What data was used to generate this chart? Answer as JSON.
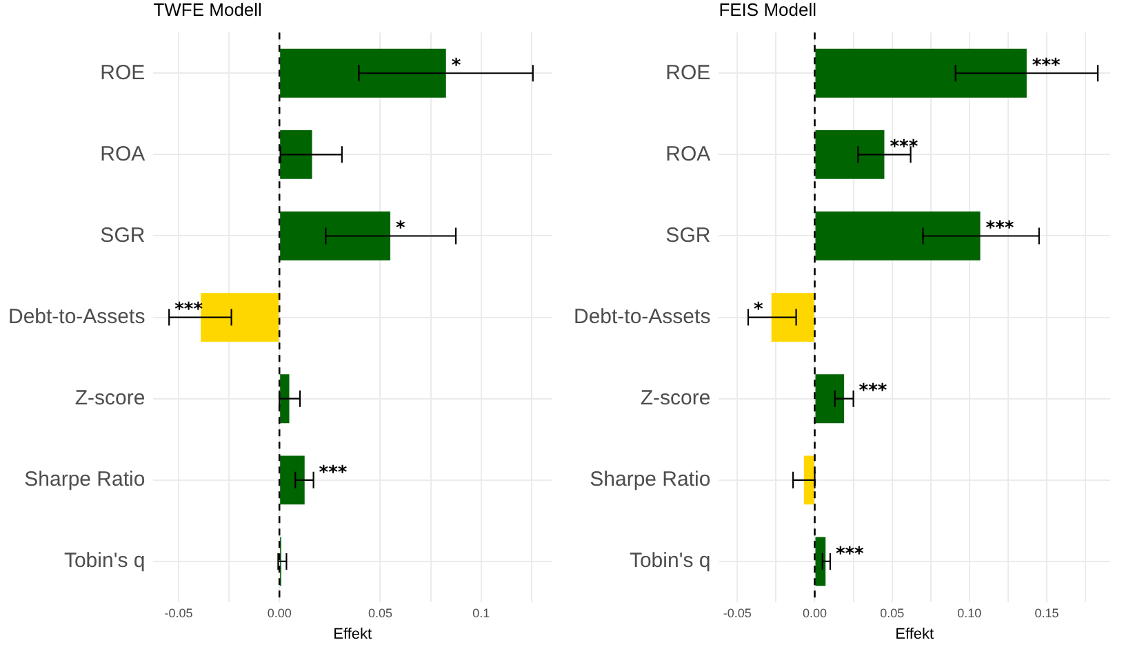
{
  "chart_data": [
    {
      "type": "bar",
      "orientation": "horizontal",
      "title": "TWFE Modell",
      "xlabel": "Effekt",
      "categories": [
        "ROE",
        "ROA",
        "SGR",
        "Debt-to-Assets",
        "Z-score",
        "Sharpe Ratio",
        "Tobin's q"
      ],
      "values": [
        0.0826,
        0.0162,
        0.055,
        -0.039,
        0.0049,
        0.0125,
        0.0009
      ],
      "colors": [
        "#006400",
        "#006400",
        "#006400",
        "#ffd700",
        "#006400",
        "#006400",
        "#006400"
      ],
      "errors": [
        [
          0.0394,
          0.1257
        ],
        [
          0.0005,
          0.031
        ],
        [
          0.023,
          0.0875
        ],
        [
          -0.0547,
          -0.0238
        ],
        [
          0.0,
          0.0102
        ],
        [
          0.0079,
          0.0169
        ],
        [
          -0.0006,
          0.0035
        ]
      ],
      "xlim": [
        -0.0625,
        0.135
      ],
      "xticks": [
        -0.05,
        {
          "value": -0.025,
          "label": null
        },
        "0.00",
        0.05,
        {
          "value": 0.075,
          "label": null
        },
        0.1,
        {
          "value": 0.125,
          "label": null
        }
      ],
      "grid": true,
      "ref_lines": [
        {
          "axis": "x",
          "value": 0,
          "line_style": "dashed"
        }
      ],
      "annotations": [
        {
          "text": "*",
          "x": 0.0826,
          "y": "ROE"
        },
        {
          "text": "*",
          "x": 0.055,
          "y": "SGR"
        },
        {
          "text": "***",
          "x": -0.0547,
          "y": "Debt-to-Assets"
        },
        {
          "text": "***",
          "x": 0.0169,
          "y": "Sharpe Ratio"
        }
      ]
    },
    {
      "type": "bar",
      "orientation": "horizontal",
      "title": "FEIS Modell",
      "xlabel": "Effekt",
      "categories": [
        "ROE",
        "ROA",
        "SGR",
        "Debt-to-Assets",
        "Z-score",
        "Sharpe Ratio",
        "Tobin's q"
      ],
      "values": [
        0.137,
        0.045,
        0.107,
        -0.028,
        0.019,
        -0.007,
        0.007
      ],
      "colors": [
        "#006400",
        "#006400",
        "#006400",
        "#ffd700",
        "#006400",
        "#ffd700",
        "#006400"
      ],
      "errors": [
        [
          0.091,
          0.183
        ],
        [
          0.028,
          0.062
        ],
        [
          0.07,
          0.145
        ],
        [
          -0.043,
          -0.012
        ],
        [
          0.013,
          0.025
        ],
        [
          -0.014,
          0.0
        ],
        [
          0.005,
          0.01
        ]
      ],
      "xlim": [
        -0.062,
        0.191
      ],
      "xticks": [
        -0.05,
        {
          "value": -0.025,
          "label": null
        },
        "0.00",
        {
          "value": 0.025,
          "label": null
        },
        0.05,
        {
          "value": 0.075,
          "label": null
        },
        "0.10",
        {
          "value": 0.125,
          "label": null
        },
        0.15,
        {
          "value": 0.175,
          "label": null
        }
      ],
      "grid": true,
      "ref_lines": [
        {
          "axis": "x",
          "value": 0,
          "line_style": "dashed"
        }
      ],
      "annotations": [
        {
          "text": "***",
          "x": 0.137,
          "y": "ROE"
        },
        {
          "text": "***",
          "x": 0.045,
          "y": "ROA"
        },
        {
          "text": "***",
          "x": 0.107,
          "y": "SGR"
        },
        {
          "text": "*",
          "x": -0.043,
          "y": "Debt-to-Assets"
        },
        {
          "text": "***",
          "x": 0.025,
          "y": "Z-score"
        },
        {
          "text": "***",
          "x": 0.01,
          "y": "Tobin's q"
        }
      ]
    }
  ]
}
